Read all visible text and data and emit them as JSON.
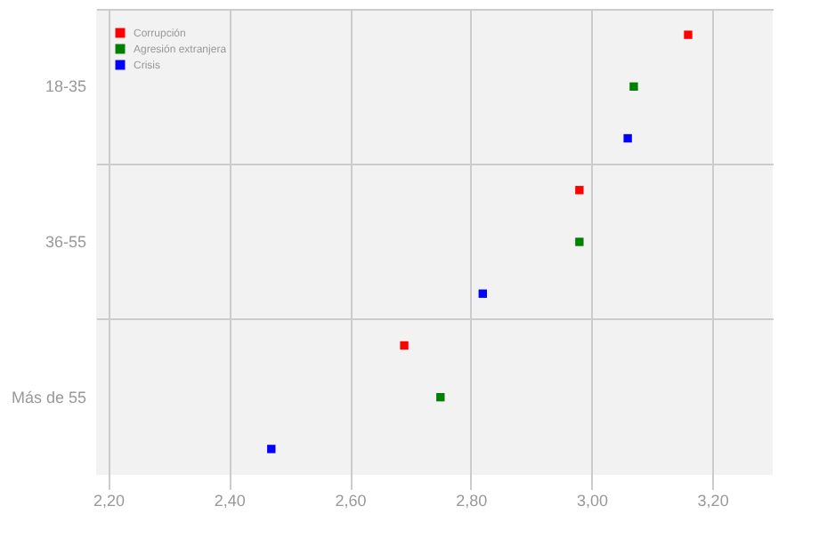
{
  "chart_data": {
    "type": "scatter",
    "orientation": "horizontal",
    "marker": "square",
    "grid": true,
    "legend": "top left",
    "categories": [
      "18-35",
      "36-55",
      "Más de 55"
    ],
    "series": [
      {
        "name": "Corrupción",
        "color": "#ff0000",
        "values": [
          3.16,
          2.98,
          2.69
        ]
      },
      {
        "name": "Agresión extranjera",
        "color": "#008000",
        "values": [
          3.07,
          2.98,
          2.75
        ]
      },
      {
        "name": "Crisis",
        "color": "#0000ff",
        "values": [
          3.06,
          2.82,
          2.47
        ]
      }
    ],
    "xlim": [
      2.18,
      3.3
    ],
    "xticks": [
      {
        "value": 2.2,
        "label": "2,20"
      },
      {
        "value": 2.4,
        "label": "2,40"
      },
      {
        "value": 2.6,
        "label": "2,60"
      },
      {
        "value": 2.8,
        "label": "2,80"
      },
      {
        "value": 3.0,
        "label": "3,00"
      },
      {
        "value": 3.2,
        "label": "3,20"
      }
    ]
  }
}
